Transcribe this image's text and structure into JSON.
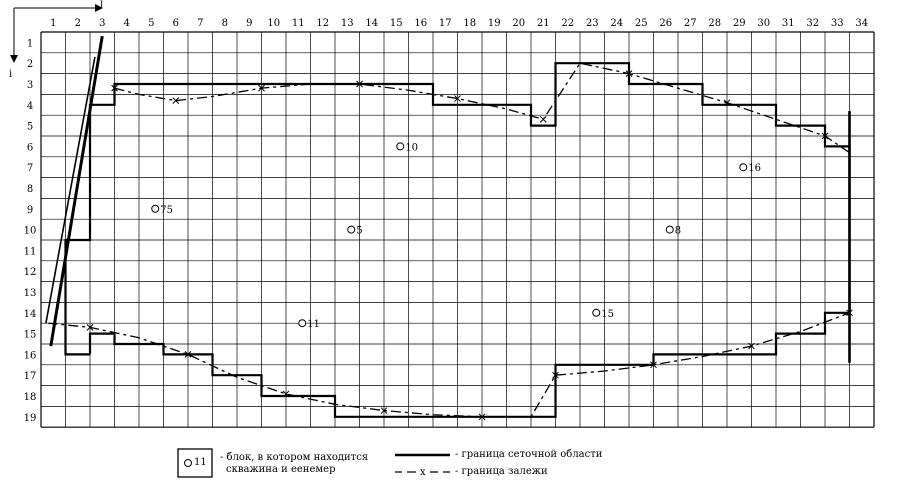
{
  "axes": {
    "col_axis_label": "j",
    "row_axis_label": "i"
  },
  "grid": {
    "columns": [
      "1",
      "2",
      "3",
      "4",
      "5",
      "6",
      "7",
      "8",
      "9",
      "10",
      "11",
      "12",
      "13",
      "14",
      "15",
      "16",
      "17",
      "18",
      "19",
      "20",
      "21",
      "22",
      "23",
      "24",
      "25",
      "26",
      "27",
      "28",
      "29",
      "30",
      "31",
      "32",
      "33",
      "34"
    ],
    "rows": [
      "1",
      "2",
      "3",
      "4",
      "5",
      "6",
      "7",
      "8",
      "9",
      "10",
      "11",
      "12",
      "13",
      "14",
      "15",
      "16",
      "17",
      "18",
      "19"
    ]
  },
  "wells": [
    {
      "label": "75",
      "col": 5,
      "row": 9
    },
    {
      "label": "10",
      "col": 15,
      "row": 6
    },
    {
      "label": "5",
      "col": 13,
      "row": 10
    },
    {
      "label": "8",
      "col": 26,
      "row": 10
    },
    {
      "label": "16",
      "col": 29,
      "row": 7
    },
    {
      "label": "11",
      "col": 11,
      "row": 14.5
    },
    {
      "label": "15",
      "col": 23,
      "row": 14
    }
  ],
  "legend": {
    "well_block_number": "11",
    "well_block_text_line1": "- блок, в котором находится",
    "well_block_text_line2": "скважина и еенемер",
    "grid_boundary_text": "- граница сеточной области",
    "deposit_boundary_text": "- граница залежи",
    "deposit_marker": "x"
  }
}
